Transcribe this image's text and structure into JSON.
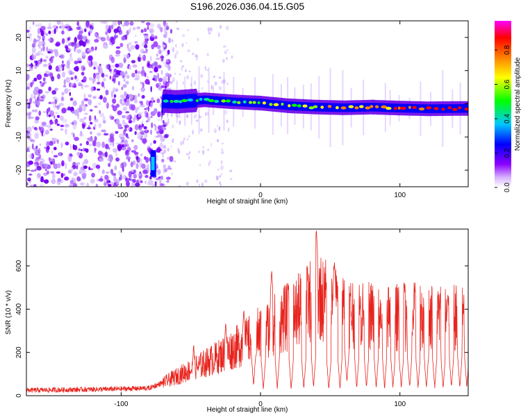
{
  "title": "S196.2026.036.04.15.G05",
  "colors": {
    "snr_line": "#e8231d",
    "axis": "#000000",
    "background": "#ffffff"
  },
  "chart_data": [
    {
      "type": "heatmap",
      "title": "S196.2026.036.04.15.G05",
      "xlabel": "Height of straight line (km)",
      "ylabel": "Frequency (Hz)",
      "xlim": [
        -168,
        149
      ],
      "ylim": [
        -25,
        25
      ],
      "x_ticks": [
        -100,
        0,
        100
      ],
      "y_ticks": [
        -20,
        -10,
        0,
        10,
        20
      ],
      "colorbar": {
        "label": "Normalized spectral amplitude",
        "range": [
          0,
          0.97
        ],
        "ticks": [
          0.0,
          0.2,
          0.4,
          0.6,
          0.8
        ],
        "colormap": [
          "#ffffff",
          "#8a00ff",
          "#0000ff",
          "#00c8ff",
          "#00ff00",
          "#ffff00",
          "#ff8000",
          "#ff0000",
          "#ff00ff"
        ]
      },
      "series": [
        {
          "description": "noise-speckle region",
          "x_range": [
            -168,
            -70
          ],
          "freq_range": [
            -25,
            25
          ]
        },
        {
          "description": "signal track",
          "points": [
            [
              -80,
              -19
            ],
            [
              -76,
              -16
            ],
            [
              -70,
              0.8
            ],
            [
              -60,
              0.6
            ],
            [
              -50,
              0.9
            ],
            [
              -40,
              1.2
            ],
            [
              -20,
              0.6
            ],
            [
              0,
              0.2
            ],
            [
              20,
              -0.6
            ],
            [
              40,
              -1.0
            ],
            [
              60,
              -1.2
            ],
            [
              80,
              -1.0
            ],
            [
              100,
              -1.3
            ],
            [
              120,
              -1.5
            ],
            [
              145,
              -1.4
            ]
          ]
        }
      ]
    },
    {
      "type": "line",
      "xlabel": "Height of straight line (km)",
      "ylabel": "SNR (10 * v/v)",
      "xlim": [
        -168,
        149
      ],
      "ylim": [
        0,
        770
      ],
      "x_ticks": [
        -100,
        0,
        100
      ],
      "y_ticks": [
        0,
        200,
        400,
        600
      ],
      "series": [
        {
          "envelope_points": [
            [
              -168,
              25
            ],
            [
              -110,
              30
            ],
            [
              -80,
              35
            ],
            [
              -70,
              60
            ],
            [
              -50,
              120
            ],
            [
              -30,
              180
            ],
            [
              -10,
              250
            ],
            [
              10,
              330
            ],
            [
              25,
              380
            ],
            [
              35,
              430
            ],
            [
              40,
              480
            ],
            [
              45,
              440
            ],
            [
              55,
              420
            ],
            [
              65,
              390
            ],
            [
              80,
              370
            ],
            [
              100,
              360
            ],
            [
              120,
              370
            ],
            [
              145,
              350
            ]
          ],
          "peaks": [
            [
              -48,
              240
            ],
            [
              -25,
              340
            ],
            [
              -12,
              400
            ],
            [
              8,
              580
            ],
            [
              20,
              520
            ],
            [
              32,
              470
            ],
            [
              40,
              770
            ],
            [
              48,
              610
            ],
            [
              53,
              620
            ],
            [
              58,
              560
            ],
            [
              70,
              520
            ],
            [
              88,
              470
            ],
            [
              103,
              530
            ]
          ],
          "dips": [
            [
              -5,
              40
            ],
            [
              2,
              20
            ],
            [
              12,
              25
            ],
            [
              22,
              20
            ],
            [
              31,
              25
            ],
            [
              38,
              30
            ],
            [
              49,
              20
            ],
            [
              57,
              25
            ],
            [
              62,
              60
            ],
            [
              69,
              30
            ],
            [
              76,
              30
            ],
            [
              83,
              30
            ],
            [
              89,
              30
            ],
            [
              95,
              30
            ],
            [
              101,
              30
            ],
            [
              107,
              30
            ],
            [
              113,
              30
            ],
            [
              119,
              30
            ],
            [
              125,
              30
            ],
            [
              131,
              30
            ],
            [
              137,
              30
            ],
            [
              143,
              30
            ],
            [
              148,
              30
            ]
          ]
        }
      ]
    }
  ]
}
